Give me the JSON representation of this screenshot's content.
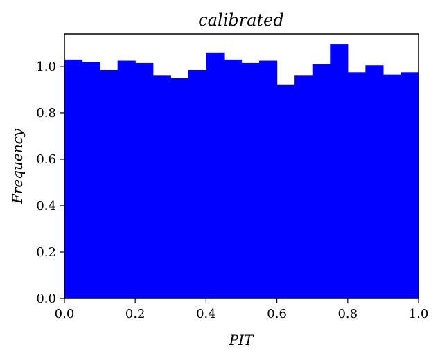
{
  "chart_data": {
    "type": "bar",
    "title": "calibrated",
    "xlabel": "PIT",
    "ylabel": "Frequency",
    "xlim": [
      0.0,
      1.0
    ],
    "ylim": [
      0.0,
      1.14
    ],
    "bin_edges": [
      0.0,
      0.05,
      0.1,
      0.15,
      0.2,
      0.25,
      0.3,
      0.35,
      0.4,
      0.45,
      0.5,
      0.55,
      0.6,
      0.65,
      0.7,
      0.75,
      0.8,
      0.85,
      0.9,
      0.95,
      1.0
    ],
    "values": [
      1.03,
      1.02,
      0.985,
      1.025,
      1.015,
      0.96,
      0.95,
      0.985,
      1.06,
      1.03,
      1.015,
      1.025,
      0.92,
      0.96,
      1.01,
      1.095,
      0.975,
      1.005,
      0.965,
      0.975
    ],
    "bar_color": "#0000ff",
    "xticks": [
      "0.0",
      "0.2",
      "0.4",
      "0.6",
      "0.8",
      "1.0"
    ],
    "yticks": [
      "0.0",
      "0.2",
      "0.4",
      "0.6",
      "0.8",
      "1.0"
    ],
    "grid": false,
    "legend": "none"
  }
}
